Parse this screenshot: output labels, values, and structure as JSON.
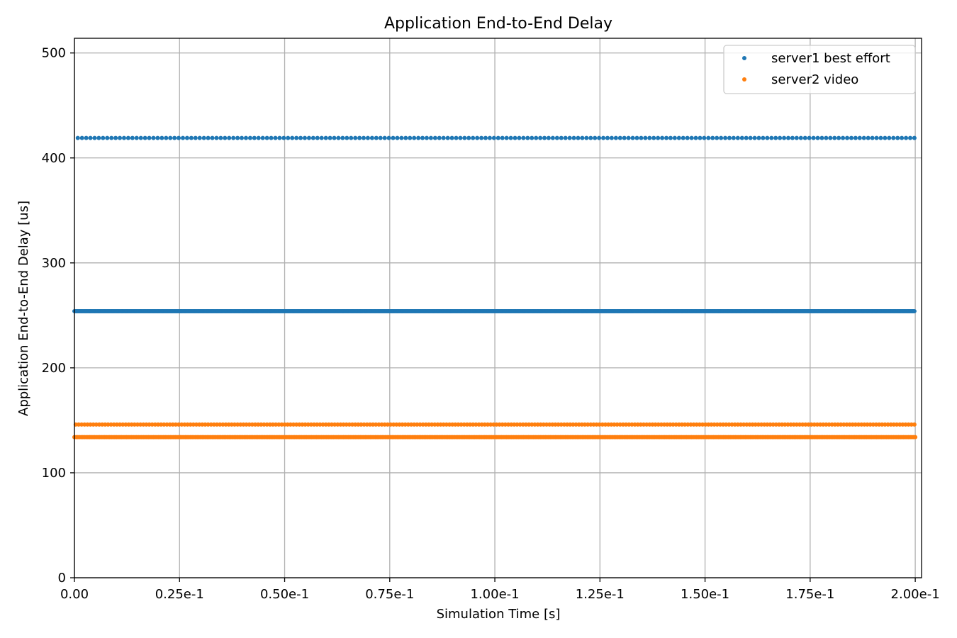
{
  "chart_data": {
    "type": "scatter",
    "title": "Application End-to-End Delay",
    "xlabel": "Simulation Time [s]",
    "ylabel": "Application End-to-End Delay [us]",
    "xlim": [
      0,
      0.2015
    ],
    "ylim": [
      0,
      514
    ],
    "xticks": [
      0,
      0.025,
      0.05,
      0.075,
      0.1,
      0.125,
      0.15,
      0.175,
      0.2
    ],
    "xtick_labels": [
      "0.00",
      "0.25e-1",
      "0.50e-1",
      "0.75e-1",
      "1.00e-1",
      "1.25e-1",
      "1.50e-1",
      "1.75e-1",
      "2.00e-1"
    ],
    "yticks": [
      0,
      100,
      200,
      300,
      400,
      500
    ],
    "ytick_labels": [
      "0",
      "100",
      "200",
      "300",
      "400",
      "500"
    ],
    "grid": true,
    "legend_position": "top-right",
    "series": [
      {
        "name": "server1 best effort",
        "color": "#1f77b4",
        "levels": [
          {
            "y": 419,
            "x_start": 0.0008,
            "x_end": 0.1998,
            "x_step": 0.001
          },
          {
            "y": 254,
            "x_start": 0.0,
            "x_end": 0.1998,
            "x_step": 0.0002
          }
        ]
      },
      {
        "name": "server2 video",
        "color": "#ff7f0e",
        "levels": [
          {
            "y": 146,
            "x_start": 0.0003,
            "x_end": 0.1998,
            "x_step": 0.0007
          },
          {
            "y": 134,
            "x_start": 0.0,
            "x_end": 0.2,
            "x_step": 0.0004
          }
        ]
      }
    ]
  }
}
